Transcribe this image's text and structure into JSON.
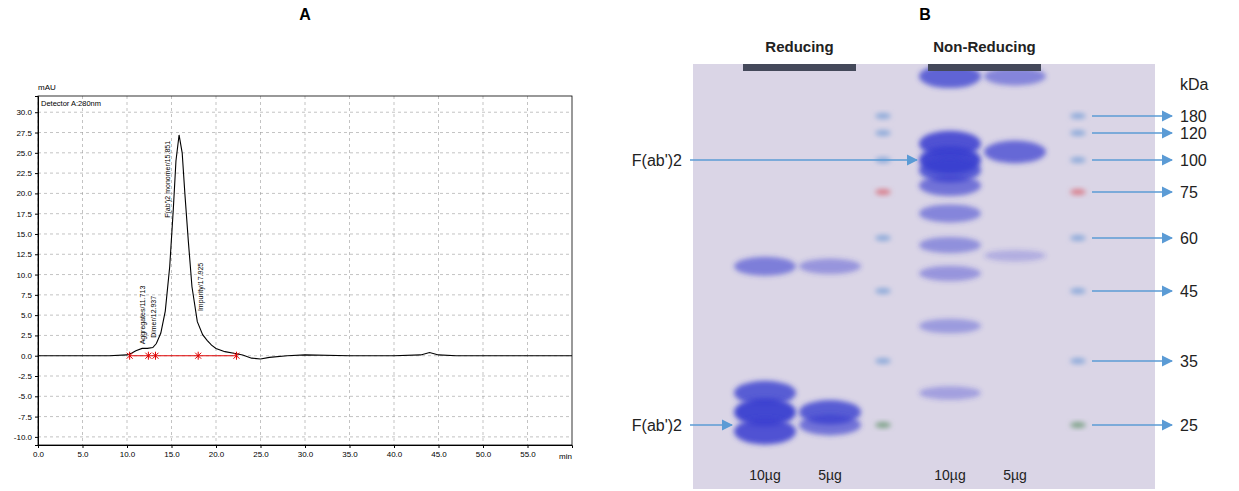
{
  "chart_data": {
    "type": "line",
    "panel_label": "A",
    "y_label": "mAU",
    "detector_label": "Detector A:280nm",
    "x_unit_label": "min",
    "x": [
      0,
      2,
      4,
      6,
      8,
      10,
      10.5,
      11,
      11.7,
      12.3,
      12.9,
      13.3,
      13.8,
      14.3,
      14.8,
      15.2,
      15.5,
      15.85,
      16.2,
      16.5,
      16.9,
      17.3,
      17.9,
      18.5,
      19,
      19.5,
      20,
      21,
      22,
      23,
      24,
      25,
      26,
      28,
      30,
      35,
      40,
      43,
      44,
      45,
      47,
      50,
      55,
      60
    ],
    "values": [
      0,
      0,
      0,
      0,
      0,
      0.1,
      0.3,
      0.6,
      0.9,
      0.9,
      1.0,
      1.5,
      2.8,
      5.5,
      11,
      18,
      24,
      27.2,
      25,
      20,
      14,
      8.5,
      4.2,
      2.6,
      1.9,
      1.3,
      0.9,
      0.5,
      0.3,
      0.1,
      -0.3,
      -0.4,
      -0.2,
      0,
      0.1,
      0,
      0,
      0.1,
      0.4,
      0.1,
      0,
      0,
      0,
      0
    ],
    "color": "#000000",
    "xlim": [
      0,
      60
    ],
    "xticks": [
      {
        "value": 0,
        "label": "0.0"
      },
      {
        "value": 5,
        "label": "5.0"
      },
      {
        "value": 10,
        "label": "10.0"
      },
      {
        "value": 15,
        "label": "15.0"
      },
      {
        "value": 20,
        "label": "20.0"
      },
      {
        "value": 25,
        "label": "25.0"
      },
      {
        "value": 30,
        "label": "30.0"
      },
      {
        "value": 35,
        "label": "35.0"
      },
      {
        "value": 40,
        "label": "40.0"
      },
      {
        "value": 45,
        "label": "45.0"
      },
      {
        "value": 50,
        "label": "50.0"
      },
      {
        "value": 55,
        "label": "55.0"
      }
    ],
    "ylim": [
      -11,
      32
    ],
    "yticks": [
      {
        "value": -10,
        "label": "-10.0"
      },
      {
        "value": -7.5,
        "label": "-7.5"
      },
      {
        "value": -5,
        "label": "-5.0"
      },
      {
        "value": -2.5,
        "label": "-2.5"
      },
      {
        "value": 0,
        "label": "0.0"
      },
      {
        "value": 2.5,
        "label": "2.5"
      },
      {
        "value": 5,
        "label": "5.0"
      },
      {
        "value": 7.5,
        "label": "7.5"
      },
      {
        "value": 10,
        "label": "10.0"
      },
      {
        "value": 12.5,
        "label": "12.5"
      },
      {
        "value": 15,
        "label": "15.0"
      },
      {
        "value": 17.5,
        "label": "17.5"
      },
      {
        "value": 20,
        "label": "20.0"
      },
      {
        "value": 22.5,
        "label": "22.5"
      },
      {
        "value": 25,
        "label": "25.0"
      },
      {
        "value": 27.5,
        "label": "27.5"
      },
      {
        "value": 30,
        "label": "30.0"
      }
    ],
    "grid": true,
    "annotations": [
      {
        "text": "Aggregates/11.713",
        "x": 11.713,
        "y": 1.4
      },
      {
        "text": "Dimer/12.937",
        "x": 12.937,
        "y": 2.2
      },
      {
        "text": "F(ab')2 monomer/15.851",
        "x": 14.5,
        "y": 17
      },
      {
        "text": "Impurity/17.925",
        "x": 18.3,
        "y": 5.5
      }
    ],
    "integration_marks": {
      "x": [
        10.3,
        12.4,
        13.2,
        18.0,
        22.3
      ],
      "baseline": 0,
      "color": "#e00000"
    }
  },
  "gel": {
    "panel_label": "B",
    "groups": [
      {
        "label": "Reducing",
        "lanes": [
          0,
          1
        ]
      },
      {
        "label": "Non-Reducing",
        "lanes": [
          3,
          4
        ]
      }
    ],
    "lanes": [
      {
        "label": "10µg",
        "bands": [
          {
            "kda": 52,
            "intensity": 0.5
          },
          {
            "kda": 30,
            "intensity": 0.8
          },
          {
            "kda": 27,
            "intensity": 1.0
          },
          {
            "kda": 24,
            "intensity": 0.9
          }
        ]
      },
      {
        "label": "5µg",
        "bands": [
          {
            "kda": 52,
            "intensity": 0.3
          },
          {
            "kda": 27,
            "intensity": 0.8
          },
          {
            "kda": 25,
            "intensity": 0.6
          }
        ]
      },
      {
        "ladder": true
      },
      {
        "label": "10µg",
        "bands": [
          {
            "kda": 320,
            "intensity": 0.75
          },
          {
            "kda": 112,
            "intensity": 0.9
          },
          {
            "kda": 100,
            "intensity": 1.0
          },
          {
            "kda": 92,
            "intensity": 0.8
          },
          {
            "kda": 80,
            "intensity": 0.6
          },
          {
            "kda": 68,
            "intensity": 0.45
          },
          {
            "kda": 58,
            "intensity": 0.35
          },
          {
            "kda": 50,
            "intensity": 0.3
          },
          {
            "kda": 40,
            "intensity": 0.25
          },
          {
            "kda": 30,
            "intensity": 0.2
          }
        ]
      },
      {
        "label": "5µg",
        "bands": [
          {
            "kda": 320,
            "intensity": 0.45
          },
          {
            "kda": 106,
            "intensity": 0.7
          },
          {
            "kda": 55,
            "intensity": 0.08
          }
        ]
      },
      {
        "ladder": true
      }
    ],
    "markers": {
      "unit": "kDa",
      "values": [
        180,
        120,
        100,
        75,
        60,
        45,
        35,
        25
      ],
      "colors": [
        "#7fa2d8",
        "#7fa2d8",
        "#7fa2d8",
        "#d8707c",
        "#7fa2d8",
        "#7fa2d8",
        "#7fa2d8",
        "#6e9a78"
      ]
    },
    "annotations": [
      {
        "text": "F(ab')2",
        "lane": 3,
        "kda": 100
      },
      {
        "text": "F(ab')2",
        "lane": 0,
        "kda": 25
      }
    ]
  }
}
